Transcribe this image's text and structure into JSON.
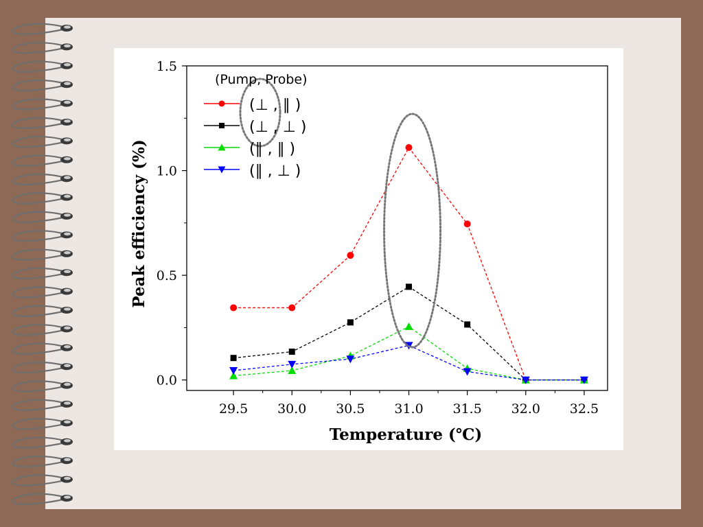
{
  "colors": {
    "frame": "#8e6a56",
    "page": "#ede7e4",
    "card": "#ffffff"
  },
  "decorations": {
    "binding": "spiral-binding-icon"
  },
  "chart_data": {
    "type": "line",
    "title": "",
    "xlabel": "Temperature (℃)",
    "ylabel": "Peak efficiency (%)",
    "x": [
      29.5,
      30.0,
      30.5,
      31.0,
      31.5,
      32.0,
      32.5
    ],
    "x_tick_labels": [
      "29.5",
      "30.0",
      "30.5",
      "31.0",
      "31.5",
      "32.0",
      "32.5"
    ],
    "y_tick_values": [
      0.0,
      0.5,
      1.0,
      1.5
    ],
    "y_tick_labels": [
      "0.0",
      "0.5",
      "1.0",
      "1.5"
    ],
    "xlim": [
      29.1,
      32.7
    ],
    "ylim": [
      -0.05,
      1.5
    ],
    "grid": false,
    "legend_title": "(Pump, Probe)",
    "legend_position": "top-left",
    "series": [
      {
        "name": "(⊥ , ∥ )",
        "color": "#ff0000",
        "marker": "circle",
        "values": [
          0.345,
          0.345,
          0.595,
          1.11,
          0.745,
          0.0,
          null
        ]
      },
      {
        "name": "(⊥ , ⊥ )",
        "color": "#000000",
        "marker": "square",
        "values": [
          0.105,
          0.135,
          0.275,
          0.445,
          0.265,
          0.0,
          0.0
        ]
      },
      {
        "name": "(∥ , ∥ )",
        "color": "#00dd00",
        "marker": "triangle-up",
        "values": [
          0.02,
          0.045,
          0.115,
          0.255,
          0.055,
          0.0,
          0.0
        ]
      },
      {
        "name": "(∥ , ⊥ )",
        "color": "#0000ff",
        "marker": "triangle-down",
        "values": [
          0.045,
          0.075,
          0.1,
          0.165,
          0.04,
          0.0,
          0.0
        ]
      }
    ],
    "annotations": [
      {
        "type": "dotted-ellipse",
        "target": "legend-polarization-column"
      },
      {
        "type": "dotted-ellipse",
        "target": "peak-at-31.0"
      }
    ]
  }
}
